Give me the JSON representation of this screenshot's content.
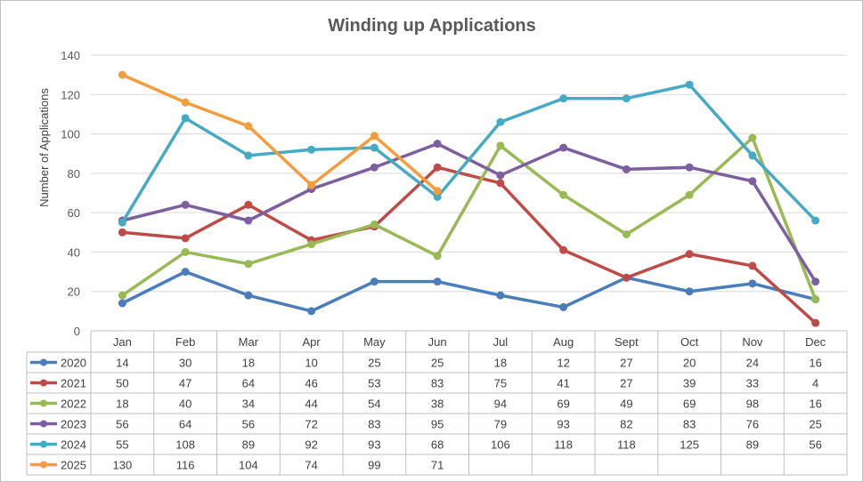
{
  "chart_data": {
    "type": "line",
    "title": "Winding up Applications",
    "ylabel": "Number of Applications",
    "xlabel": "",
    "ylim": [
      0,
      140
    ],
    "yticks": [
      0,
      20,
      40,
      60,
      80,
      100,
      120,
      140
    ],
    "grid": "horizontal",
    "legend": "data-table",
    "categories": [
      "Jan",
      "Feb",
      "Mar",
      "Apr",
      "May",
      "Jun",
      "Jul",
      "Aug",
      "Sept",
      "Oct",
      "Nov",
      "Dec"
    ],
    "series": [
      {
        "name": "2020",
        "color": "#4a7ebb",
        "values": [
          14,
          30,
          18,
          10,
          25,
          25,
          18,
          12,
          27,
          20,
          24,
          16
        ]
      },
      {
        "name": "2021",
        "color": "#be4b48",
        "values": [
          50,
          47,
          64,
          46,
          53,
          83,
          75,
          41,
          27,
          39,
          33,
          4
        ]
      },
      {
        "name": "2022",
        "color": "#98b954",
        "values": [
          18,
          40,
          34,
          44,
          54,
          38,
          94,
          69,
          49,
          69,
          98,
          16
        ]
      },
      {
        "name": "2023",
        "color": "#7d5fa0",
        "values": [
          56,
          64,
          56,
          72,
          83,
          95,
          79,
          93,
          82,
          83,
          76,
          25
        ]
      },
      {
        "name": "2024",
        "color": "#46aac5",
        "values": [
          55,
          108,
          89,
          92,
          93,
          68,
          106,
          118,
          118,
          125,
          89,
          56
        ]
      },
      {
        "name": "2025",
        "color": "#f59d3d",
        "values": [
          130,
          116,
          104,
          74,
          99,
          71,
          null,
          null,
          null,
          null,
          null,
          null
        ]
      }
    ]
  }
}
